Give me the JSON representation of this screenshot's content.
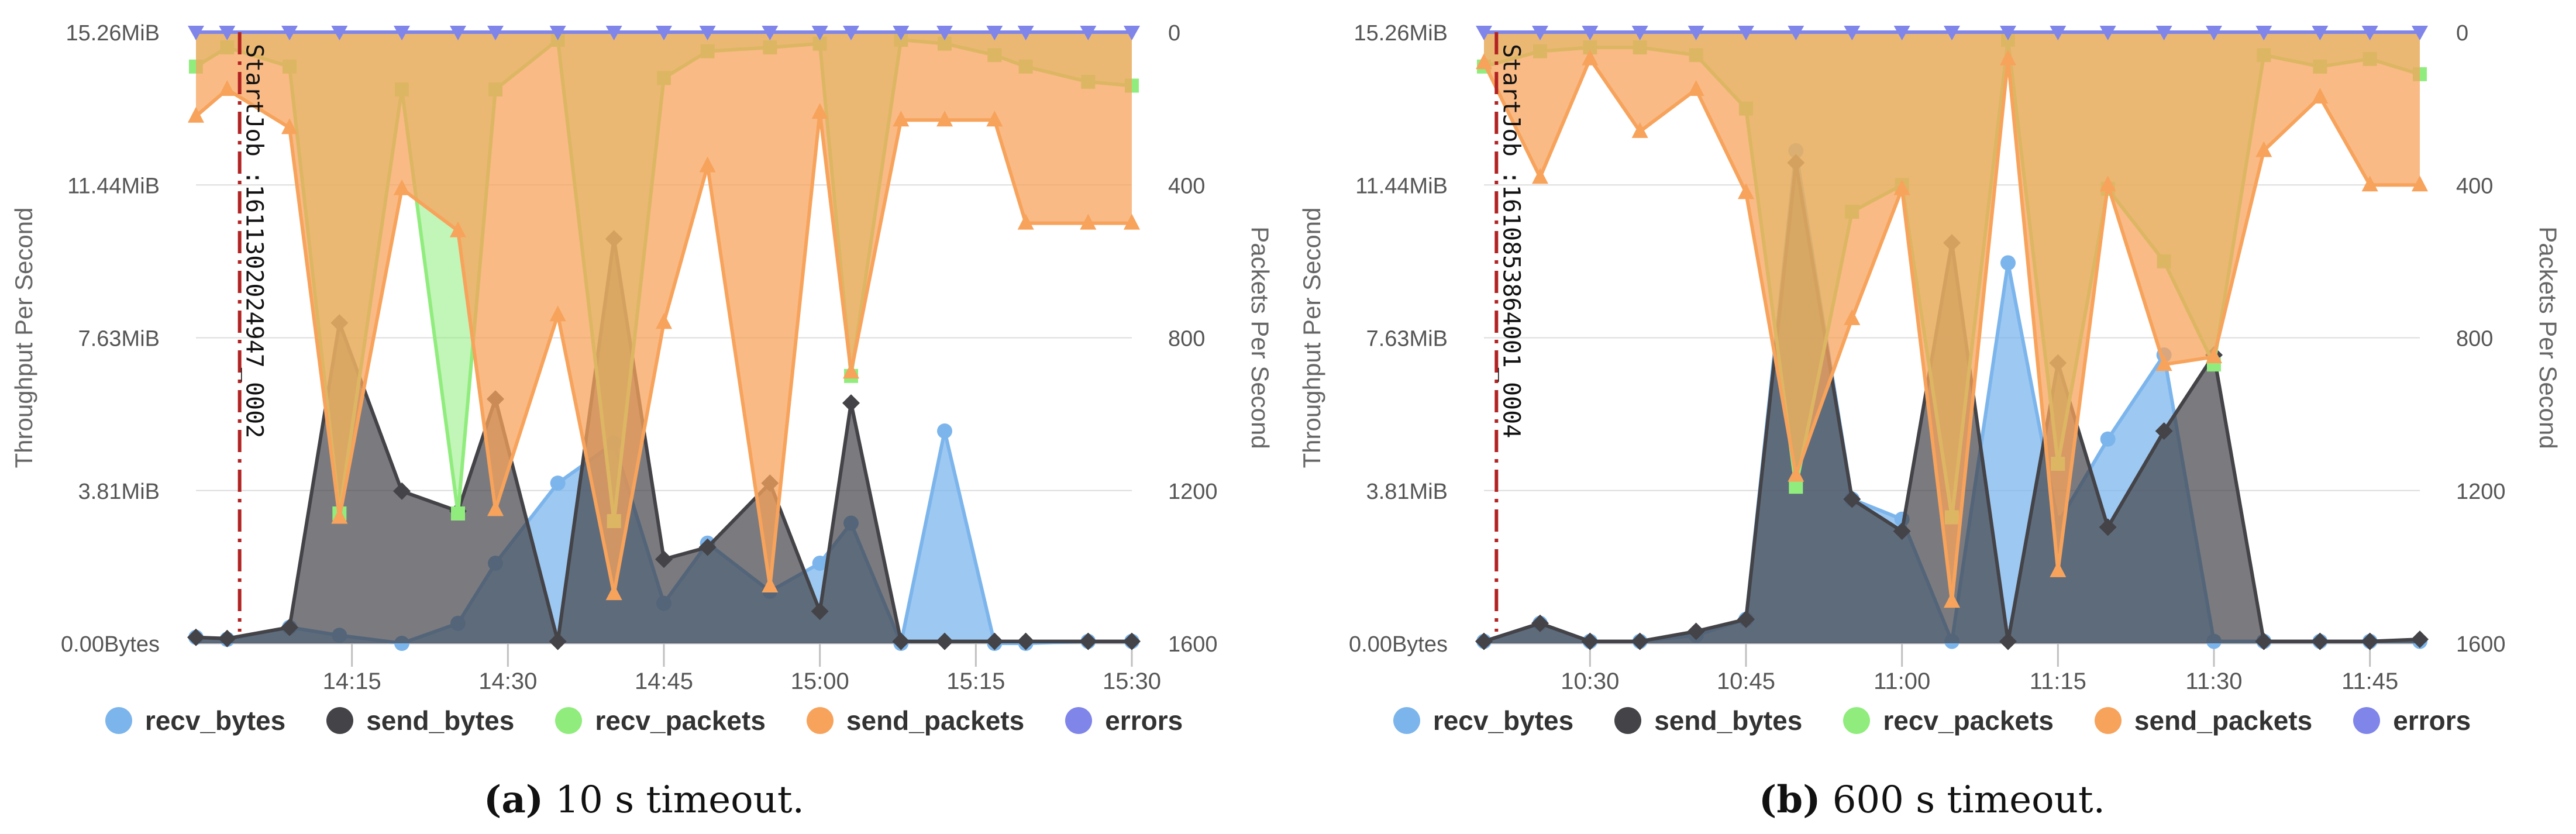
{
  "colors": {
    "recv_bytes": "#7cb5ec",
    "send_bytes": "#434348",
    "recv_packets": "#90ed7d",
    "send_packets": "#f7a35c",
    "errors": "#8085e9",
    "marker_line": "#b22222"
  },
  "legend": [
    "recv_bytes",
    "send_bytes",
    "recv_packets",
    "send_packets",
    "errors"
  ],
  "chart_data": [
    {
      "type": "area",
      "caption_label": "(a)",
      "caption_text": "10 s timeout.",
      "ylabel_left": "Throughput Per Second",
      "ylabel_right": "Packets Per Second",
      "yticks_left": [
        "15.26MiB",
        "11.44MiB",
        "7.63MiB",
        "3.81MiB",
        "0.00Bytes"
      ],
      "yticks_right": [
        "0",
        "400",
        "800",
        "1200",
        "1600"
      ],
      "left_axis_max_mib": 15.26,
      "right_axis_max": 1600,
      "right_axis_inverted": true,
      "x_start": 14.0,
      "x_end": 15.5,
      "xticks": [
        {
          "t": 14.25,
          "label": "14:15"
        },
        {
          "t": 14.5,
          "label": "14:30"
        },
        {
          "t": 14.75,
          "label": "14:45"
        },
        {
          "t": 15.0,
          "label": "15:00"
        },
        {
          "t": 15.25,
          "label": "15:15"
        },
        {
          "t": 15.5,
          "label": "15:30"
        }
      ],
      "annotation": {
        "t": 14.07,
        "label": "StartJob :1611302024947_0002"
      },
      "x": [
        14.0,
        14.05,
        14.15,
        14.23,
        14.33,
        14.42,
        14.48,
        14.58,
        14.67,
        14.75,
        14.82,
        14.92,
        15.0,
        15.05,
        15.13,
        15.2,
        15.28,
        15.33,
        15.43,
        15.5
      ],
      "series": [
        {
          "name": "recv_bytes",
          "axis": "left",
          "values": [
            0.15,
            0.1,
            0.4,
            0.2,
            0.0,
            0.5,
            2.0,
            4.0,
            5.0,
            1.0,
            2.5,
            1.3,
            2.0,
            3.0,
            0.0,
            5.3,
            0.0,
            0.0,
            0.05,
            0.05
          ]
        },
        {
          "name": "send_bytes",
          "axis": "left",
          "values": [
            0.15,
            0.12,
            0.4,
            8.0,
            3.8,
            3.3,
            6.1,
            0.05,
            10.1,
            2.1,
            2.4,
            4.0,
            0.8,
            6.0,
            0.05,
            0.05,
            0.05,
            0.05,
            0.05,
            0.05
          ]
        },
        {
          "name": "recv_packets",
          "axis": "right",
          "values": [
            90,
            40,
            90,
            1260,
            150,
            1260,
            150,
            20,
            1280,
            120,
            50,
            40,
            30,
            900,
            20,
            30,
            60,
            90,
            130,
            140
          ]
        },
        {
          "name": "send_packets",
          "axis": "right",
          "values": [
            220,
            150,
            250,
            1270,
            410,
            520,
            1250,
            740,
            1470,
            760,
            350,
            1450,
            210,
            890,
            230,
            230,
            230,
            500,
            500,
            500
          ]
        },
        {
          "name": "errors",
          "axis": "right",
          "values": [
            0,
            0,
            0,
            0,
            0,
            0,
            0,
            0,
            0,
            0,
            0,
            0,
            0,
            0,
            0,
            0,
            0,
            0,
            0,
            0
          ]
        }
      ]
    },
    {
      "type": "area",
      "caption_label": "(b)",
      "caption_text": "600 s timeout.",
      "ylabel_left": "Throughput Per Second",
      "ylabel_right": "Packets Per Second",
      "yticks_left": [
        "15.26MiB",
        "11.44MiB",
        "7.63MiB",
        "3.81MiB",
        "0.00Bytes"
      ],
      "yticks_right": [
        "0",
        "400",
        "800",
        "1200",
        "1600"
      ],
      "left_axis_max_mib": 15.26,
      "right_axis_max": 1600,
      "right_axis_inverted": true,
      "x_start": 10.33,
      "x_end": 11.83,
      "xticks": [
        {
          "t": 10.5,
          "label": "10:30"
        },
        {
          "t": 10.75,
          "label": "10:45"
        },
        {
          "t": 11.0,
          "label": "11:00"
        },
        {
          "t": 11.25,
          "label": "11:15"
        },
        {
          "t": 11.5,
          "label": "11:30"
        },
        {
          "t": 11.75,
          "label": "11:45"
        }
      ],
      "annotation": {
        "t": 10.35,
        "label": "StartJob :1610853864001_0004"
      },
      "x": [
        10.33,
        10.42,
        10.5,
        10.58,
        10.67,
        10.75,
        10.83,
        10.92,
        11.0,
        11.08,
        11.17,
        11.25,
        11.33,
        11.42,
        11.5,
        11.58,
        11.67,
        11.75,
        11.83
      ],
      "series": [
        {
          "name": "recv_bytes",
          "axis": "left",
          "values": [
            0.05,
            0.5,
            0.05,
            0.05,
            0.2,
            0.6,
            12.3,
            3.6,
            3.1,
            0.05,
            9.5,
            3.0,
            5.1,
            7.2,
            0.05,
            0.05,
            0.05,
            0.05,
            0.05
          ]
        },
        {
          "name": "send_bytes",
          "axis": "left",
          "values": [
            0.05,
            0.5,
            0.05,
            0.05,
            0.3,
            0.6,
            12.0,
            3.6,
            2.8,
            10.0,
            0.05,
            7.0,
            2.9,
            5.3,
            7.2,
            0.05,
            0.05,
            0.05,
            0.1
          ]
        },
        {
          "name": "recv_packets",
          "axis": "right",
          "values": [
            90,
            50,
            40,
            40,
            60,
            200,
            1190,
            470,
            400,
            1270,
            20,
            1130,
            410,
            600,
            870,
            60,
            90,
            70,
            110
          ]
        },
        {
          "name": "send_packets",
          "axis": "right",
          "values": [
            80,
            380,
            70,
            260,
            150,
            420,
            1160,
            750,
            410,
            1490,
            70,
            1410,
            400,
            870,
            850,
            310,
            170,
            400,
            400
          ]
        },
        {
          "name": "errors",
          "axis": "right",
          "values": [
            0,
            0,
            0,
            0,
            0,
            0,
            0,
            0,
            0,
            0,
            0,
            0,
            0,
            0,
            0,
            0,
            0,
            0,
            0
          ]
        }
      ]
    }
  ]
}
